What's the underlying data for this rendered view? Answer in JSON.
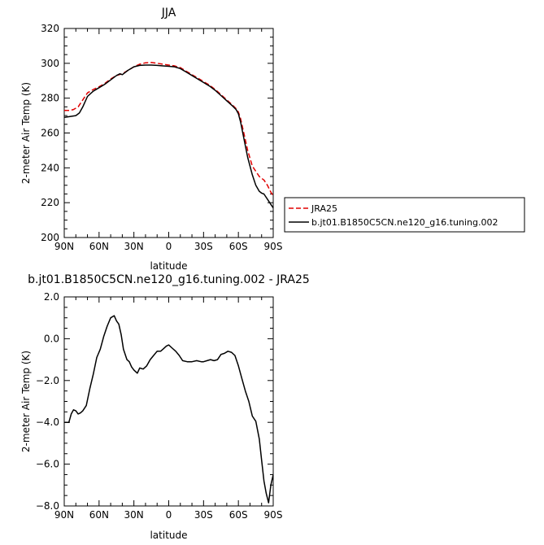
{
  "chart_data": [
    {
      "type": "line",
      "title": "JJA",
      "xlabel": "latitude",
      "ylabel": "2-meter Air Temp (K)",
      "xlim": [
        90,
        -90
      ],
      "ylim": [
        200,
        320
      ],
      "x_ticks": [
        {
          "value": 90,
          "label": "90N"
        },
        {
          "value": 60,
          "label": "60N"
        },
        {
          "value": 30,
          "label": "30N"
        },
        {
          "value": 0,
          "label": "0"
        },
        {
          "value": -30,
          "label": "30S"
        },
        {
          "value": -60,
          "label": "60S"
        },
        {
          "value": -90,
          "label": "90S"
        }
      ],
      "y_ticks": [
        {
          "value": 200,
          "label": "200"
        },
        {
          "value": 220,
          "label": "220"
        },
        {
          "value": 240,
          "label": "240"
        },
        {
          "value": 260,
          "label": "260"
        },
        {
          "value": 280,
          "label": "280"
        },
        {
          "value": 300,
          "label": "300"
        },
        {
          "value": 320,
          "label": "320"
        }
      ],
      "grid": false,
      "legend": "outside-right",
      "series": [
        {
          "name": "JRA25",
          "color": "#e00000",
          "dash": "dashed",
          "x": [
            90,
            85,
            82,
            78,
            74,
            70,
            65,
            60,
            55,
            50,
            45,
            40,
            35,
            30,
            25,
            20,
            15,
            10,
            5,
            0,
            -5,
            -10,
            -15,
            -20,
            -25,
            -30,
            -35,
            -40,
            -45,
            -50,
            -55,
            -58,
            -60,
            -62,
            -65,
            -68,
            -72,
            -75,
            -78,
            -80,
            -82,
            -85,
            -88,
            -90
          ],
          "values": [
            273,
            273,
            273.5,
            275,
            279,
            283,
            285,
            286.5,
            288.5,
            291,
            293,
            294,
            296,
            298,
            299.5,
            300.3,
            300.5,
            300,
            299.5,
            299,
            298.5,
            297.5,
            295.5,
            293.5,
            291.5,
            289.5,
            287.5,
            285,
            282,
            279,
            276,
            274,
            272,
            268,
            259,
            250,
            241,
            238,
            235,
            234,
            233,
            230,
            226,
            224
          ]
        },
        {
          "name": "b.jt01.B1850C5CN.ne120_g16.tuning.002",
          "color": "#000000",
          "dash": "solid",
          "x": [
            90,
            85,
            80,
            77,
            74,
            70,
            65,
            60,
            55,
            50,
            45,
            42,
            40,
            35,
            30,
            25,
            20,
            15,
            10,
            5,
            0,
            -5,
            -10,
            -15,
            -20,
            -25,
            -30,
            -35,
            -40,
            -45,
            -50,
            -55,
            -58,
            -60,
            -62,
            -65,
            -68,
            -72,
            -75,
            -78,
            -80,
            -82,
            -85,
            -88,
            -90
          ],
          "values": [
            269,
            269.5,
            270,
            271.5,
            275,
            281,
            284,
            286,
            288,
            290.5,
            293,
            294,
            293.5,
            296,
            298,
            298.8,
            299,
            299,
            298.8,
            298.5,
            298.3,
            298,
            297,
            295,
            293,
            291,
            289,
            287,
            284.5,
            281.5,
            278.5,
            275.5,
            273.5,
            271,
            266,
            256,
            246,
            236,
            230,
            226.5,
            225.5,
            225,
            222,
            219,
            217
          ]
        }
      ]
    },
    {
      "type": "line",
      "title": "b.jt01.B1850C5CN.ne120_g16.tuning.002 - JRA25",
      "xlabel": "latitude",
      "ylabel": "2-meter Air Temp (K)",
      "xlim": [
        90,
        -90
      ],
      "ylim": [
        -8,
        2
      ],
      "x_ticks": [
        {
          "value": 90,
          "label": "90N"
        },
        {
          "value": 60,
          "label": "60N"
        },
        {
          "value": 30,
          "label": "30N"
        },
        {
          "value": 0,
          "label": "0"
        },
        {
          "value": -30,
          "label": "30S"
        },
        {
          "value": -60,
          "label": "60S"
        },
        {
          "value": -90,
          "label": "90S"
        }
      ],
      "y_ticks": [
        {
          "value": -8,
          "label": "−8.0"
        },
        {
          "value": -6,
          "label": "−6.0"
        },
        {
          "value": -4,
          "label": "−4.0"
        },
        {
          "value": -2,
          "label": "−2.0"
        },
        {
          "value": 0,
          "label": "0.0"
        },
        {
          "value": 2,
          "label": "2.0"
        }
      ],
      "grid": false,
      "series": [
        {
          "color": "#000000",
          "dash": "solid",
          "x": [
            90,
            86,
            84,
            82,
            80,
            78,
            76,
            74,
            71,
            68,
            65,
            62,
            59,
            56,
            53,
            50,
            47,
            45,
            43,
            41,
            39,
            36,
            34,
            32,
            30,
            27,
            25,
            22,
            19,
            16,
            13,
            10,
            7,
            5,
            2,
            0,
            -3,
            -6,
            -9,
            -12,
            -16,
            -20,
            -24,
            -28,
            -30,
            -33,
            -36,
            -39,
            -42,
            -45,
            -48,
            -51,
            -54,
            -57,
            -60,
            -63,
            -66,
            -69,
            -72,
            -75,
            -78,
            -80,
            -82,
            -84,
            -86,
            -88,
            -90
          ],
          "values": [
            -4,
            -4,
            -3.6,
            -3.4,
            -3.45,
            -3.6,
            -3.55,
            -3.45,
            -3.2,
            -2.4,
            -1.7,
            -0.9,
            -0.5,
            0.1,
            0.6,
            1.0,
            1.1,
            0.85,
            0.7,
            0.2,
            -0.5,
            -1.0,
            -1.1,
            -1.35,
            -1.5,
            -1.65,
            -1.4,
            -1.45,
            -1.3,
            -1.0,
            -0.8,
            -0.6,
            -0.6,
            -0.5,
            -0.35,
            -0.3,
            -0.45,
            -0.6,
            -0.8,
            -1.05,
            -1.1,
            -1.1,
            -1.05,
            -1.1,
            -1.1,
            -1.05,
            -1.0,
            -1.05,
            -1.0,
            -0.75,
            -0.7,
            -0.6,
            -0.65,
            -0.8,
            -1.3,
            -1.9,
            -2.5,
            -3.0,
            -3.7,
            -3.95,
            -4.8,
            -5.8,
            -6.8,
            -7.4,
            -7.85,
            -7.0,
            -6.5
          ]
        }
      ]
    }
  ]
}
